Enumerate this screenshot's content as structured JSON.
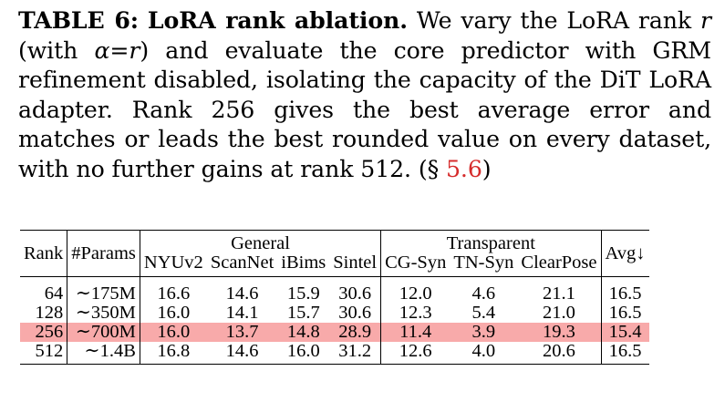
{
  "caption": {
    "label": "TABLE 6:",
    "title": "LoRA rank ablation.",
    "part1": " We vary the LoRA rank ",
    "r1": "r",
    "part2": " (with ",
    "alpha_expr": "α=r",
    "part3": ") and evaluate the core predictor with GRM refinement disabled, isolating the capacity of the DiT LoRA adapter. Rank 256 gives the best average error and matches or leads the best rounded value on every dataset, with no further gains at rank 512. (§ ",
    "section_ref": "5.6",
    "part4": ")"
  },
  "table": {
    "group_headers": {
      "general": "General",
      "transparent": "Transparent"
    },
    "col_rank": "Rank",
    "col_params": "#Params",
    "col_avg": "Avg↓",
    "general_cols": [
      "NYUv2",
      "ScanNet",
      "iBims",
      "Sintel"
    ],
    "transparent_cols": [
      "CG-Syn",
      "TN-Syn",
      "ClearPose"
    ],
    "rows": [
      {
        "rank": "64",
        "params": "∼175M",
        "values": [
          "16.6",
          "14.6",
          "15.9",
          "30.6",
          "12.0",
          "4.6",
          "21.1"
        ],
        "avg": "16.5"
      },
      {
        "rank": "128",
        "params": "∼350M",
        "values": [
          "16.0",
          "14.1",
          "15.7",
          "30.6",
          "12.3",
          "5.4",
          "21.0"
        ],
        "avg": "16.5"
      },
      {
        "rank": "256",
        "params": "∼700M",
        "values": [
          "16.0",
          "13.7",
          "14.8",
          "28.9",
          "11.4",
          "3.9",
          "19.3"
        ],
        "avg": "15.4"
      },
      {
        "rank": "512",
        "params": "∼1.4B",
        "values": [
          "16.8",
          "14.6",
          "16.0",
          "31.2",
          "12.6",
          "4.0",
          "20.6"
        ],
        "avg": "16.5"
      }
    ]
  },
  "colors": {
    "highlight_row": "#f8aaaa",
    "reference_link": "#d62c2c"
  }
}
